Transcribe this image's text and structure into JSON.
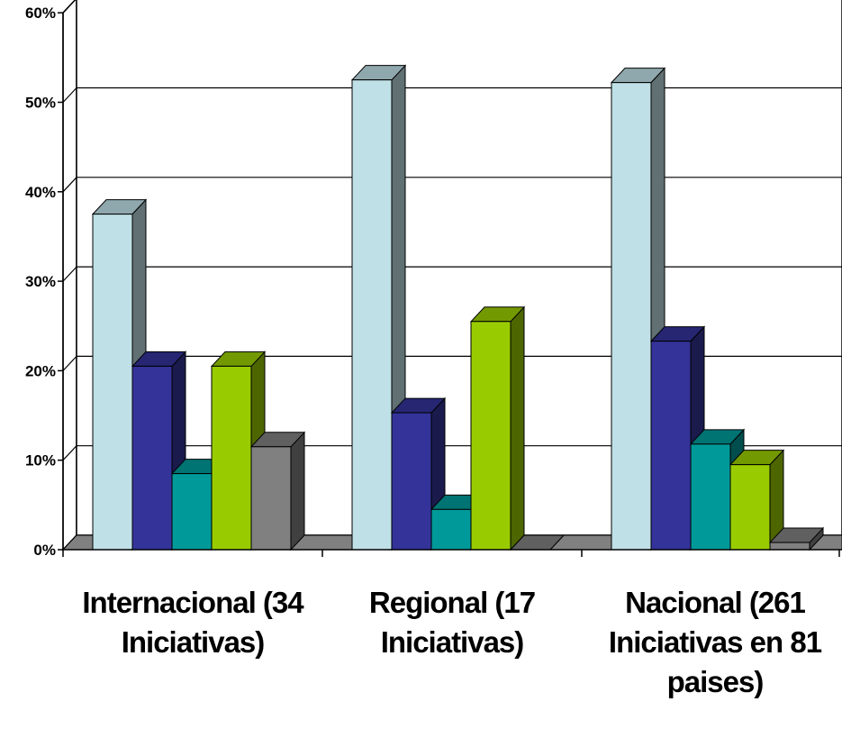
{
  "chart_data": {
    "type": "bar",
    "title": "",
    "xlabel": "",
    "ylabel": "",
    "ylim": [
      0,
      60
    ],
    "y_ticks": [
      "0%",
      "10%",
      "20%",
      "30%",
      "40%",
      "50%",
      "60%"
    ],
    "grid": true,
    "legend": "none",
    "categories": [
      [
        "Internacional (34",
        "Iniciativas)"
      ],
      [
        "Regional (17",
        "Iniciativas)"
      ],
      [
        "Nacional (261",
        "Iniciativas en 81",
        "paises)"
      ]
    ],
    "series": [
      {
        "color": "#bfe0e6",
        "values": [
          37.5,
          52.5,
          52.2
        ]
      },
      {
        "color": "#333399",
        "values": [
          20.5,
          15.3,
          23.3
        ]
      },
      {
        "color": "#009999",
        "values": [
          8.5,
          4.5,
          11.8
        ]
      },
      {
        "color": "#99cc00",
        "values": [
          20.5,
          25.5,
          9.5
        ]
      },
      {
        "color": "#808080",
        "values": [
          11.5,
          0,
          0.8
        ]
      }
    ]
  }
}
